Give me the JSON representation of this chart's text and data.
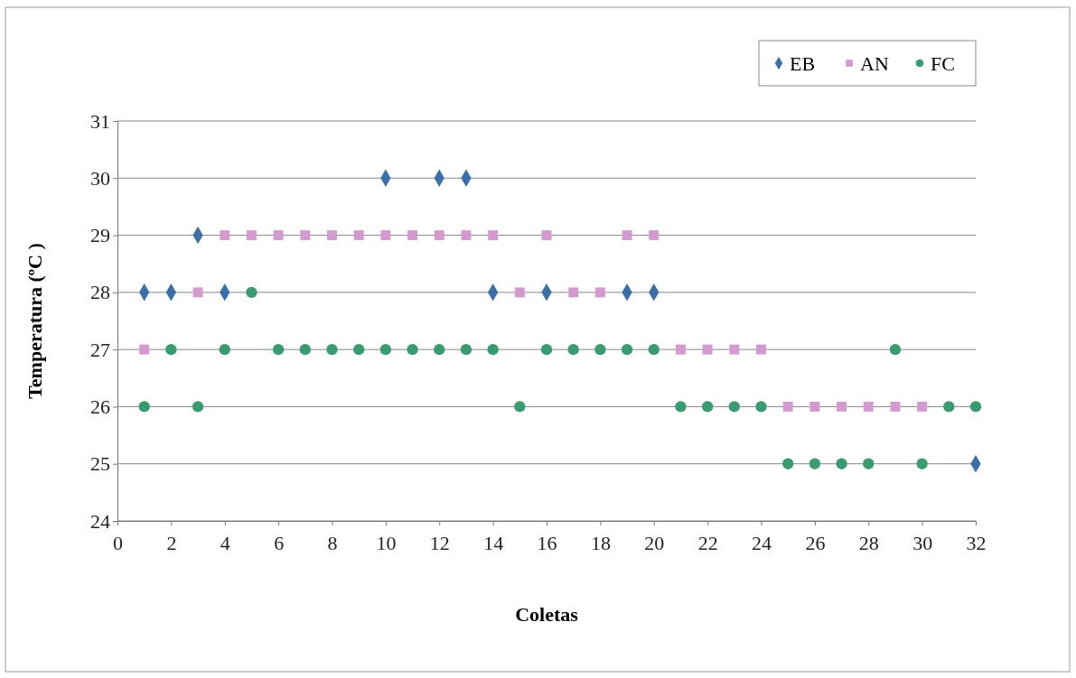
{
  "chart_data": {
    "type": "scatter",
    "xlabel": "Coletas",
    "ylabel": "Temperatura (ºC )",
    "x": [
      1,
      2,
      3,
      4,
      5,
      6,
      7,
      8,
      9,
      10,
      11,
      12,
      13,
      14,
      15,
      16,
      17,
      18,
      19,
      20,
      21,
      22,
      23,
      24,
      25,
      26,
      27,
      28,
      29,
      30,
      31,
      32
    ],
    "series": [
      {
        "name": "EB",
        "color": "#3a6fa8",
        "marker": "diamond",
        "values": [
          28,
          28,
          29,
          28,
          null,
          null,
          null,
          null,
          null,
          30,
          null,
          30,
          30,
          28,
          null,
          28,
          null,
          null,
          28,
          28,
          null,
          null,
          null,
          null,
          null,
          null,
          null,
          null,
          null,
          null,
          null,
          25
        ]
      },
      {
        "name": "AN",
        "color": "#d49ad0",
        "marker": "square",
        "values": [
          27,
          null,
          28,
          29,
          29,
          29,
          29,
          29,
          29,
          29,
          29,
          29,
          29,
          29,
          28,
          29,
          28,
          28,
          29,
          29,
          27,
          27,
          27,
          27,
          26,
          26,
          26,
          26,
          26,
          26,
          null,
          null
        ]
      },
      {
        "name": "FC",
        "color": "#3a9a70",
        "marker": "circle",
        "values": [
          26,
          27,
          26,
          27,
          28,
          27,
          27,
          27,
          27,
          27,
          27,
          27,
          27,
          27,
          26,
          27,
          27,
          27,
          27,
          27,
          26,
          26,
          26,
          26,
          25,
          25,
          25,
          25,
          27,
          25,
          26,
          26
        ]
      }
    ],
    "xlim": [
      0,
      32
    ],
    "xticks": [
      0,
      2,
      4,
      6,
      8,
      10,
      12,
      14,
      16,
      18,
      20,
      22,
      24,
      26,
      28,
      30,
      32
    ],
    "ylim": [
      24,
      31
    ],
    "yticks": [
      24,
      25,
      26,
      27,
      28,
      29,
      30,
      31
    ],
    "grid": "y",
    "legend": "top right"
  }
}
